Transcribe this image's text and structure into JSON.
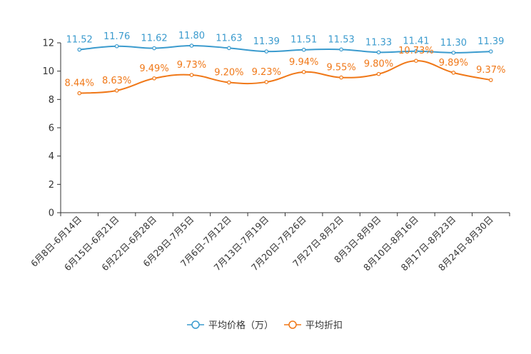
{
  "chart_data": {
    "type": "line",
    "title": "",
    "xlabel": "",
    "ylabel": "",
    "ylim": [
      0,
      12
    ],
    "yticks": [
      0,
      2,
      4,
      6,
      8,
      10,
      12
    ],
    "categories": [
      "6月8日-6月14日",
      "6月15日-6月21日",
      "6月22日-6月28日",
      "6月29日-7月5日",
      "7月6日-7月12日",
      "7月13日-7月19日",
      "7月20日-7月26日",
      "7月27日-8月2日",
      "8月3日-8月9日",
      "8月10日-8月16日",
      "8月17日-8月23日",
      "8月24日-8月30日"
    ],
    "series": [
      {
        "name": "平均价格（万）",
        "color": "#3b9bce",
        "values": [
          11.52,
          11.76,
          11.62,
          11.8,
          11.63,
          11.39,
          11.51,
          11.53,
          11.33,
          11.41,
          11.3,
          11.39
        ],
        "labels": [
          "11.52",
          "11.76",
          "11.62",
          "11.80",
          "11.63",
          "11.39",
          "11.51",
          "11.53",
          "11.33",
          "11.41",
          "11.30",
          "11.39"
        ]
      },
      {
        "name": "平均折扣",
        "color": "#f07818",
        "values": [
          8.44,
          8.63,
          9.49,
          9.73,
          9.2,
          9.23,
          9.94,
          9.55,
          9.8,
          10.73,
          9.89,
          9.37
        ],
        "labels": [
          "8.44%",
          "8.63%",
          "9.49%",
          "9.73%",
          "9.20%",
          "9.23%",
          "9.94%",
          "9.55%",
          "9.80%",
          "10.73%",
          "9.89%",
          "9.37%"
        ]
      }
    ],
    "legend": "bottom",
    "grid": false
  }
}
